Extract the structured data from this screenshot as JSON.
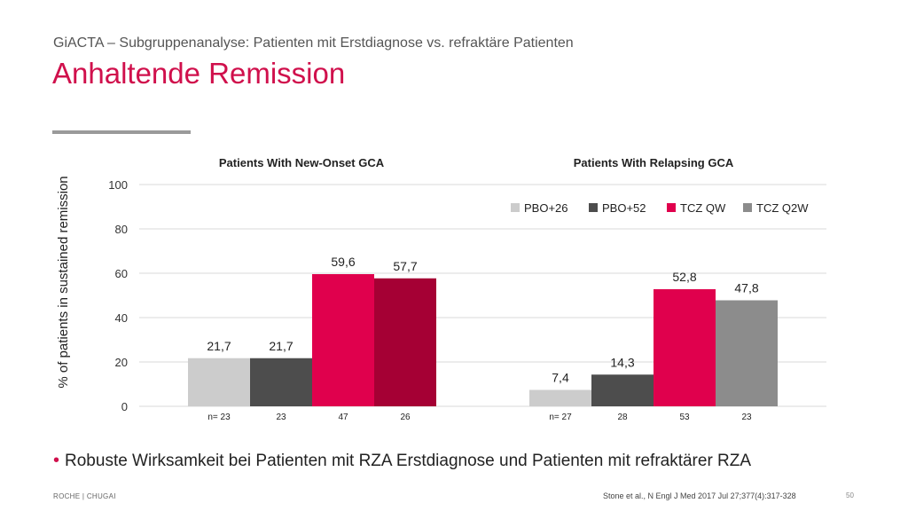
{
  "header": {
    "subtitle": "GiACTA – Subgruppenanalyse: Patienten mit Erstdiagnose vs. refraktäre Patienten",
    "title": "Anhaltende Remission"
  },
  "chart_data": {
    "type": "bar",
    "ylabel": "% of patients in sustained remission",
    "ylim": [
      0,
      100
    ],
    "yticks": [
      0,
      20,
      40,
      60,
      80,
      100
    ],
    "grid": true,
    "legend_position": "top-right",
    "legend": [
      {
        "name": "PBO+26",
        "color": "#cccccc"
      },
      {
        "name": "PBO+52",
        "color": "#4d4d4d"
      },
      {
        "name": "TCZ QW",
        "color": "#e0004d"
      },
      {
        "name": "TCZ Q2W",
        "color": "#8c8c8c"
      }
    ],
    "groups": [
      {
        "title": "Patients With New-Onset GCA",
        "bars": [
          {
            "series": "PBO+26",
            "value": 21.7,
            "label": "21,7",
            "n": "n= 23",
            "color": "#cccccc"
          },
          {
            "series": "PBO+52",
            "value": 21.7,
            "label": "21,7",
            "n": "23",
            "color": "#4d4d4d"
          },
          {
            "series": "TCZ QW",
            "value": 59.6,
            "label": "59,6",
            "n": "47",
            "color": "#e0004d"
          },
          {
            "series": "TCZ Q2W",
            "value": 57.7,
            "label": "57,7",
            "n": "26",
            "color": "#a50034"
          }
        ]
      },
      {
        "title": "Patients With Relapsing GCA",
        "bars": [
          {
            "series": "PBO+26",
            "value": 7.4,
            "label": "7,4",
            "n": "n= 27",
            "color": "#cccccc"
          },
          {
            "series": "PBO+52",
            "value": 14.3,
            "label": "14,3",
            "n": "28",
            "color": "#4d4d4d"
          },
          {
            "series": "TCZ QW",
            "value": 52.8,
            "label": "52,8",
            "n": "53",
            "color": "#e0004d"
          },
          {
            "series": "TCZ Q2W",
            "value": 47.8,
            "label": "47,8",
            "n": "23",
            "color": "#8c8c8c"
          }
        ]
      }
    ]
  },
  "body": {
    "bullet": "Robuste Wirksamkeit bei Patienten mit RZA Erstdiagnose und Patienten mit refraktärer RZA"
  },
  "footer": {
    "left": "ROCHE | CHUGAI",
    "citation": "Stone et al., N Engl J Med 2017 Jul 27;377(4):317-328",
    "page": "50"
  }
}
